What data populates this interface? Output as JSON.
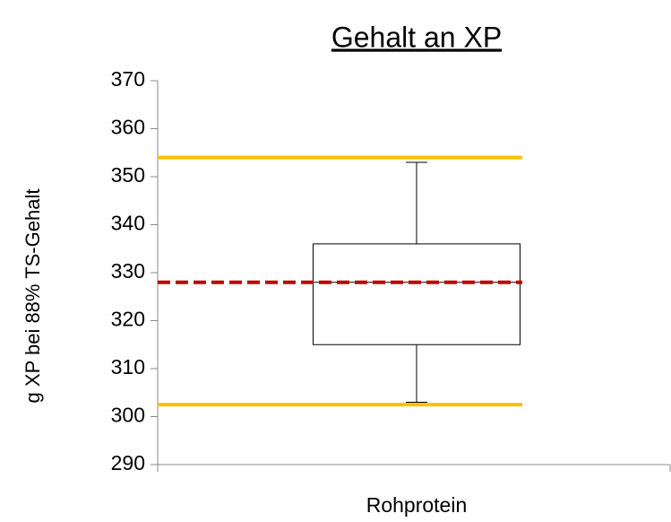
{
  "chart_data": {
    "type": "box",
    "title": "Gehalt an XP",
    "y_label": "g XP bei 88% TS-Gehalt",
    "categories": [
      "Rohprotein"
    ],
    "boxes": [
      {
        "min": 303,
        "q1": 315,
        "median": 328,
        "q3": 336,
        "max": 353
      }
    ],
    "box_color": "#000000",
    "reference_lines": [
      {
        "value": 354,
        "color": "#ffc000",
        "style": "solid"
      },
      {
        "value": 302.5,
        "color": "#ffc000",
        "style": "solid"
      },
      {
        "value": 328,
        "color": "#c00000",
        "style": "dashed"
      }
    ],
    "ylim": [
      290,
      370
    ],
    "yticks": [
      290,
      300,
      310,
      320,
      330,
      340,
      350,
      360,
      370
    ],
    "grid": false
  }
}
